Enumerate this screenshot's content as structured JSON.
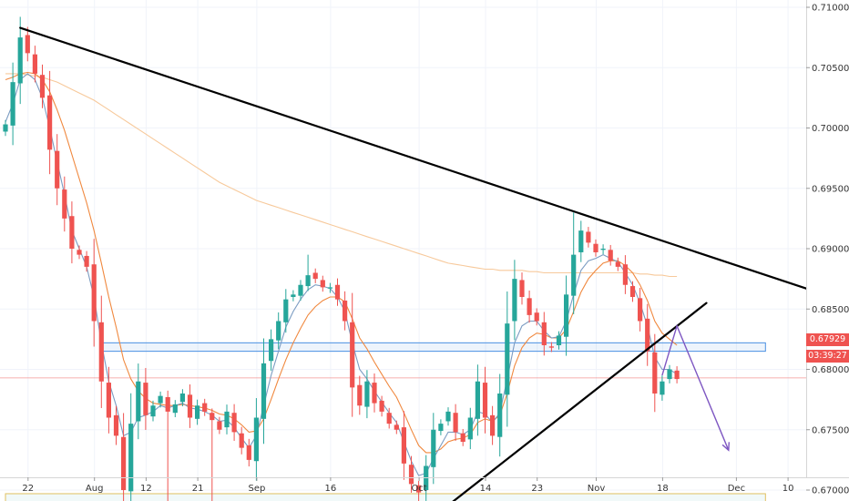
{
  "chart_data": {
    "type": "candlestick",
    "title": "",
    "xlabel": "",
    "ylabel": "",
    "ylim": [
      0.667,
      0.7105
    ],
    "y_ticks": [
      "0.71000",
      "0.70500",
      "0.70000",
      "0.69500",
      "0.69000",
      "0.68500",
      "0.68000",
      "0.67500",
      "0.67000"
    ],
    "y_tick_values": [
      0.71,
      0.705,
      0.7,
      0.695,
      0.69,
      0.685,
      0.68,
      0.675,
      0.67
    ],
    "x_ticks": [
      "22",
      "Aug",
      "12",
      "21",
      "Sep",
      "16",
      "Oct",
      "14",
      "23",
      "Nov",
      "18",
      "Dec",
      "10"
    ],
    "x_tick_index": [
      3,
      12,
      19,
      26,
      34,
      44,
      56,
      65,
      72,
      80,
      89,
      99,
      106
    ],
    "bar_count": 92,
    "current_price": "0.67929",
    "countdown": "03:39:27",
    "colors": {
      "up": "#26a69a",
      "down": "#ef5350",
      "ma_fast": "#7b9cc2",
      "ma_mid": "#f0883e",
      "ma_slow": "#f7c99b",
      "trendline": "#000000",
      "zone_upper": "#4a90e2",
      "zone_lower": "#e0c060",
      "arrow": "#7e57c2",
      "price_line": "#ef5350"
    },
    "close": [
      0.7003,
      0.7038,
      0.7075,
      0.7062,
      0.7045,
      0.7025,
      0.6982,
      0.695,
      0.6925,
      0.69,
      0.6895,
      0.6885,
      0.684,
      0.679,
      0.676,
      0.6745,
      0.67,
      0.6755,
      0.679,
      0.6762,
      0.677,
      0.6778,
      0.6765,
      0.6771,
      0.678,
      0.676,
      0.677,
      0.6765,
      0.6758,
      0.675,
      0.6765,
      0.6748,
      0.6735,
      0.6725,
      0.676,
      0.6805,
      0.6825,
      0.684,
      0.6858,
      0.6862,
      0.687,
      0.6878,
      0.6875,
      0.6868,
      0.6868,
      0.6858,
      0.684,
      0.6785,
      0.677,
      0.679,
      0.6772,
      0.6765,
      0.6755,
      0.675,
      0.6722,
      0.6705,
      0.6698,
      0.672,
      0.675,
      0.6755,
      0.6765,
      0.6748,
      0.674,
      0.676,
      0.679,
      0.676,
      0.6745,
      0.678,
      0.6838,
      0.6875,
      0.686,
      0.6845,
      0.684,
      0.682,
      0.6818,
      0.6828,
      0.6862,
      0.6895,
      0.6915,
      0.6905,
      0.6897,
      0.69,
      0.689,
      0.6885,
      0.687,
      0.686,
      0.684,
      0.6815,
      0.678,
      0.679,
      0.68,
      0.6792
    ],
    "ma_fast_values": [
      0.7005,
      0.702,
      0.704,
      0.7045,
      0.704,
      0.7025,
      0.7,
      0.6972,
      0.6945,
      0.6915,
      0.69,
      0.6885,
      0.686,
      0.6822,
      0.679,
      0.677,
      0.6745,
      0.6748,
      0.676,
      0.6762,
      0.6765,
      0.677,
      0.6768,
      0.677,
      0.6772,
      0.6768,
      0.6767,
      0.6765,
      0.6762,
      0.6757,
      0.6758,
      0.6752,
      0.6743,
      0.6735,
      0.6745,
      0.677,
      0.6795,
      0.6815,
      0.6835,
      0.6848,
      0.6858,
      0.6866,
      0.687,
      0.6869,
      0.6867,
      0.686,
      0.6848,
      0.6822,
      0.68,
      0.6792,
      0.6782,
      0.6773,
      0.6764,
      0.6756,
      0.674,
      0.6724,
      0.6712,
      0.6714,
      0.6726,
      0.6737,
      0.6748,
      0.6748,
      0.6746,
      0.675,
      0.6765,
      0.6763,
      0.6756,
      0.6764,
      0.6792,
      0.6822,
      0.6836,
      0.684,
      0.684,
      0.6832,
      0.6826,
      0.6827,
      0.684,
      0.6862,
      0.6882,
      0.689,
      0.6892,
      0.6895,
      0.6892,
      0.6889,
      0.688,
      0.687,
      0.6855,
      0.6836,
      0.681,
      0.68,
      0.68,
      0.6796
    ],
    "ma_mid_values": [
      0.704,
      0.7042,
      0.7045,
      0.7046,
      0.7045,
      0.704,
      0.703,
      0.7015,
      0.6998,
      0.6978,
      0.6958,
      0.6938,
      0.6915,
      0.6888,
      0.686,
      0.6835,
      0.6808,
      0.6792,
      0.6782,
      0.6776,
      0.6772,
      0.6771,
      0.677,
      0.677,
      0.6771,
      0.677,
      0.6769,
      0.6768,
      0.6766,
      0.6763,
      0.6762,
      0.6759,
      0.6754,
      0.6748,
      0.6749,
      0.6759,
      0.6775,
      0.6792,
      0.6808,
      0.6822,
      0.6834,
      0.6845,
      0.6852,
      0.6857,
      0.686,
      0.686,
      0.6856,
      0.6842,
      0.6826,
      0.6817,
      0.6806,
      0.6796,
      0.6786,
      0.6777,
      0.6764,
      0.675,
      0.6737,
      0.6731,
      0.6731,
      0.6734,
      0.674,
      0.6742,
      0.6743,
      0.6746,
      0.6756,
      0.6759,
      0.6757,
      0.6762,
      0.678,
      0.6803,
      0.6818,
      0.6826,
      0.683,
      0.6829,
      0.6826,
      0.6826,
      0.6833,
      0.6848,
      0.6864,
      0.6875,
      0.6882,
      0.6888,
      0.689,
      0.689,
      0.6886,
      0.688,
      0.687,
      0.6857,
      0.684,
      0.683,
      0.6825,
      0.682
    ],
    "ma_slow_values": [
      0.7045,
      0.7045,
      0.7045,
      0.7044,
      0.7043,
      0.7042,
      0.704,
      0.7038,
      0.7035,
      0.7032,
      0.7029,
      0.7026,
      0.7023,
      0.7019,
      0.7015,
      0.7011,
      0.7007,
      0.7003,
      0.6999,
      0.6995,
      0.6991,
      0.6987,
      0.6983,
      0.6979,
      0.6975,
      0.6971,
      0.6967,
      0.6963,
      0.6959,
      0.6955,
      0.6952,
      0.6949,
      0.6946,
      0.6943,
      0.694,
      0.6938,
      0.6936,
      0.6934,
      0.6932,
      0.693,
      0.6928,
      0.6926,
      0.6924,
      0.6922,
      0.692,
      0.6918,
      0.6916,
      0.6914,
      0.6912,
      0.691,
      0.6908,
      0.6906,
      0.6904,
      0.6902,
      0.69,
      0.6898,
      0.6896,
      0.6894,
      0.6892,
      0.689,
      0.6888,
      0.6887,
      0.6886,
      0.6885,
      0.6884,
      0.6883,
      0.6883,
      0.6882,
      0.6882,
      0.6882,
      0.6882,
      0.6881,
      0.6881,
      0.688,
      0.688,
      0.688,
      0.688,
      0.688,
      0.688,
      0.688,
      0.688,
      0.688,
      0.688,
      0.688,
      0.688,
      0.688,
      0.6879,
      0.6879,
      0.6878,
      0.6878,
      0.6877,
      0.6877
    ],
    "trendlines": [
      {
        "name": "descending-resistance",
        "from": {
          "i": 2,
          "price": 0.7083
        },
        "to": {
          "i": 110,
          "price": 0.6864
        }
      },
      {
        "name": "ascending-support",
        "from": {
          "i": 57,
          "price": 0.6673
        },
        "to": {
          "i": 95,
          "price": 0.6855
        }
      }
    ],
    "zones": [
      {
        "name": "resistance-zone",
        "from_i": 13,
        "to_i": 103,
        "top": 0.6822,
        "bottom": 0.6815
      },
      {
        "name": "support-zone",
        "from_i": 0,
        "to_i": 103,
        "top": 0.6697,
        "bottom": 0.6688
      }
    ],
    "projection_arrow": {
      "points": [
        {
          "i": 89,
          "price": 0.6795
        },
        {
          "i": 91,
          "price": 0.6836
        },
        {
          "i": 98,
          "price": 0.6733
        }
      ]
    }
  }
}
